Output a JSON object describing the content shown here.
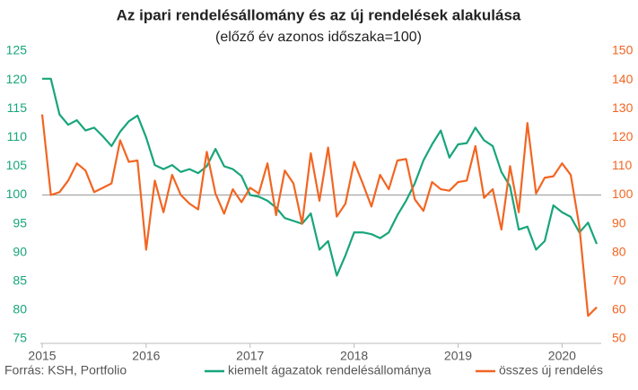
{
  "chart_data": {
    "type": "line",
    "title": "Az ipari rendelésállomány és az új rendelések alakulása",
    "subtitle": "(előző év azonos időszaka=100)",
    "source": "Forrás: KSH, Portfolio",
    "categories": [
      "2015",
      null,
      null,
      null,
      null,
      null,
      null,
      null,
      null,
      null,
      null,
      null,
      "2016",
      null,
      null,
      null,
      null,
      null,
      null,
      null,
      null,
      null,
      null,
      null,
      "2017",
      null,
      null,
      null,
      null,
      null,
      null,
      null,
      null,
      null,
      null,
      null,
      "2018",
      null,
      null,
      null,
      null,
      null,
      null,
      null,
      null,
      null,
      null,
      null,
      "2019",
      null,
      null,
      null,
      null,
      null,
      null,
      null,
      null,
      null,
      null,
      null,
      "2020",
      null,
      null,
      null,
      null
    ],
    "series": [
      {
        "name": "kiemelt ágazatok rendelésállománya",
        "color": "#18a57b",
        "axis": "y",
        "values": [
          120.2,
          120.2,
          114,
          112.2,
          113,
          111.2,
          111.7,
          110.2,
          108.5,
          111,
          112.8,
          113.8,
          110,
          105.2,
          104.5,
          105.2,
          104,
          104.5,
          103.8,
          105,
          108,
          105,
          104.5,
          103.3,
          100,
          99.7,
          99,
          97.8,
          96,
          95.5,
          95,
          96.8,
          90.5,
          92,
          86,
          89.5,
          93.5,
          93.5,
          93.2,
          92.5,
          93.5,
          96.5,
          99,
          102,
          106,
          108.8,
          111.2,
          106.5,
          108.8,
          109,
          111.7,
          109.5,
          108.5,
          104,
          101.5,
          94,
          94.5,
          90.5,
          92,
          98.2,
          97,
          96.2,
          93.5,
          95.2,
          91.5
        ]
      },
      {
        "name": "összes új rendelés",
        "color": "#f26522",
        "axis": "y2",
        "values": [
          128,
          100,
          101,
          105,
          111,
          108.5,
          101,
          102.5,
          104,
          119,
          111.5,
          112,
          81,
          105,
          94,
          107,
          100,
          97,
          95,
          115,
          100.5,
          93.5,
          102,
          97.5,
          102.5,
          100.5,
          111,
          93,
          108.5,
          104,
          90,
          114.5,
          98,
          116.5,
          92.5,
          97,
          111.5,
          104,
          96,
          107,
          102,
          112,
          112.5,
          98.5,
          94.5,
          104.5,
          102,
          101.5,
          104.5,
          105,
          117,
          99,
          102,
          88,
          110,
          94,
          125,
          100.5,
          106,
          106.5,
          111,
          107,
          89,
          58,
          61
        ]
      }
    ],
    "ylim": [
      75,
      125
    ],
    "yticks": [
      75,
      80,
      85,
      90,
      95,
      100,
      105,
      110,
      115,
      120,
      125
    ],
    "y2lim": [
      50,
      150
    ],
    "y2ticks": [
      50,
      60,
      70,
      80,
      90,
      100,
      110,
      120,
      130,
      140,
      150
    ],
    "reference_line": 100,
    "legend": "bottom"
  }
}
